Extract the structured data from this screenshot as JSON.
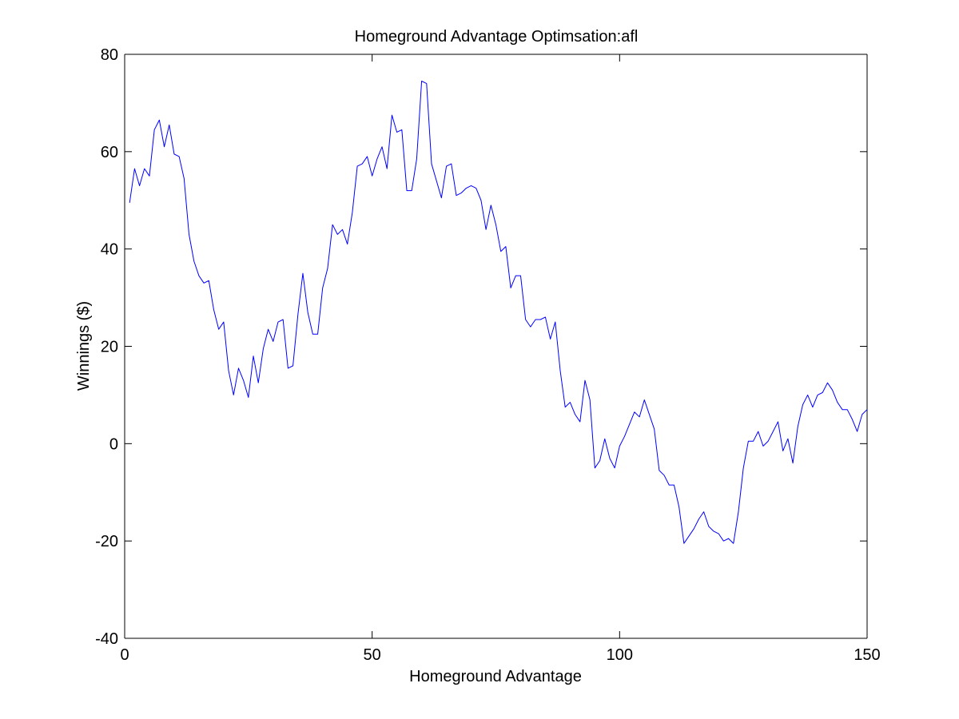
{
  "chart_data": {
    "type": "line",
    "title": "Homeground Advantage Optimsation:afl",
    "xlabel": "Homeground Advantage",
    "ylabel": "Winnings ($)",
    "xlim": [
      0,
      150
    ],
    "ylim": [
      -40,
      80
    ],
    "xticks": [
      0,
      50,
      100,
      150
    ],
    "yticks": [
      -40,
      -20,
      0,
      20,
      40,
      60,
      80
    ],
    "xtick_labels": [
      "0",
      "50",
      "100",
      "150"
    ],
    "ytick_labels": [
      "-40",
      "-20",
      "0",
      "20",
      "40",
      "60",
      "80"
    ],
    "grid": false,
    "legend": "none",
    "line_color": "#0000ff",
    "series": [
      {
        "x": [
          1,
          2,
          3,
          4,
          5,
          6,
          7,
          8,
          9,
          10,
          11,
          12,
          13,
          14,
          15,
          16,
          17,
          18,
          19,
          20,
          21,
          22,
          23,
          24,
          25,
          26,
          27,
          28,
          29,
          30,
          31,
          32,
          33,
          34,
          35,
          36,
          37,
          38,
          39,
          40,
          41,
          42,
          43,
          44,
          45,
          46,
          47,
          48,
          49,
          50,
          51,
          52,
          53,
          54,
          55,
          56,
          57,
          58,
          59,
          60,
          61,
          62,
          63,
          64,
          65,
          66,
          67,
          68,
          69,
          70,
          71,
          72,
          73,
          74,
          75,
          76,
          77,
          78,
          79,
          80,
          81,
          82,
          83,
          84,
          85,
          86,
          87,
          88,
          89,
          90,
          91,
          92,
          93,
          94,
          95,
          96,
          97,
          98,
          99,
          100,
          101,
          102,
          103,
          104,
          105,
          106,
          107,
          108,
          109,
          110,
          111,
          112,
          113,
          114,
          115,
          116,
          117,
          118,
          119,
          120,
          121,
          122,
          123,
          124,
          125,
          126,
          127,
          128,
          129,
          130,
          131,
          132,
          133,
          134,
          135,
          136,
          137,
          138,
          139,
          140,
          141,
          142,
          143,
          144,
          145,
          146,
          147,
          148,
          149,
          150
        ],
        "values": [
          49.5,
          56.5,
          53,
          56.5,
          55,
          64.5,
          66.5,
          61,
          65.5,
          59.5,
          59,
          54.5,
          43,
          37.5,
          34.5,
          33,
          33.5,
          27.5,
          23.5,
          25,
          15,
          10,
          15.5,
          13,
          9.5,
          18,
          12.5,
          19.5,
          23.5,
          21,
          25,
          25.5,
          15.5,
          16,
          26.5,
          35,
          27,
          22.5,
          22.5,
          32,
          36,
          45,
          43,
          44,
          41,
          47.5,
          57,
          57.5,
          59,
          55,
          58.5,
          61,
          56.5,
          67.5,
          64,
          64.5,
          52,
          52,
          58.5,
          74.5,
          74,
          57.5,
          54,
          50.5,
          57,
          57.5,
          51,
          51.5,
          52.5,
          53,
          52.5,
          50,
          44,
          49,
          45,
          39.5,
          40.5,
          32,
          34.5,
          34.5,
          25.5,
          24,
          25.5,
          25.5,
          26,
          21.5,
          25,
          15,
          7.5,
          8.5,
          6,
          4.5,
          13,
          9,
          -5,
          -3.5,
          1,
          -3,
          -5,
          -0.5,
          1.5,
          4,
          6.5,
          5.5,
          9,
          6,
          3,
          -5.5,
          -6.5,
          -8.5,
          -8.5,
          -13,
          -20.5,
          -19,
          -17.5,
          -15.5,
          -14,
          -17,
          -18,
          -18.5,
          -20,
          -19.5,
          -20.5,
          -14,
          -5,
          0.5,
          0.5,
          2.5,
          -0.5,
          0.5,
          2.5,
          4.5,
          -1.5,
          1,
          -4,
          3.5,
          8,
          10,
          7.5,
          10,
          10.5,
          12.5,
          11,
          8.5,
          7,
          7,
          5,
          2.5,
          6,
          7
        ]
      }
    ]
  }
}
